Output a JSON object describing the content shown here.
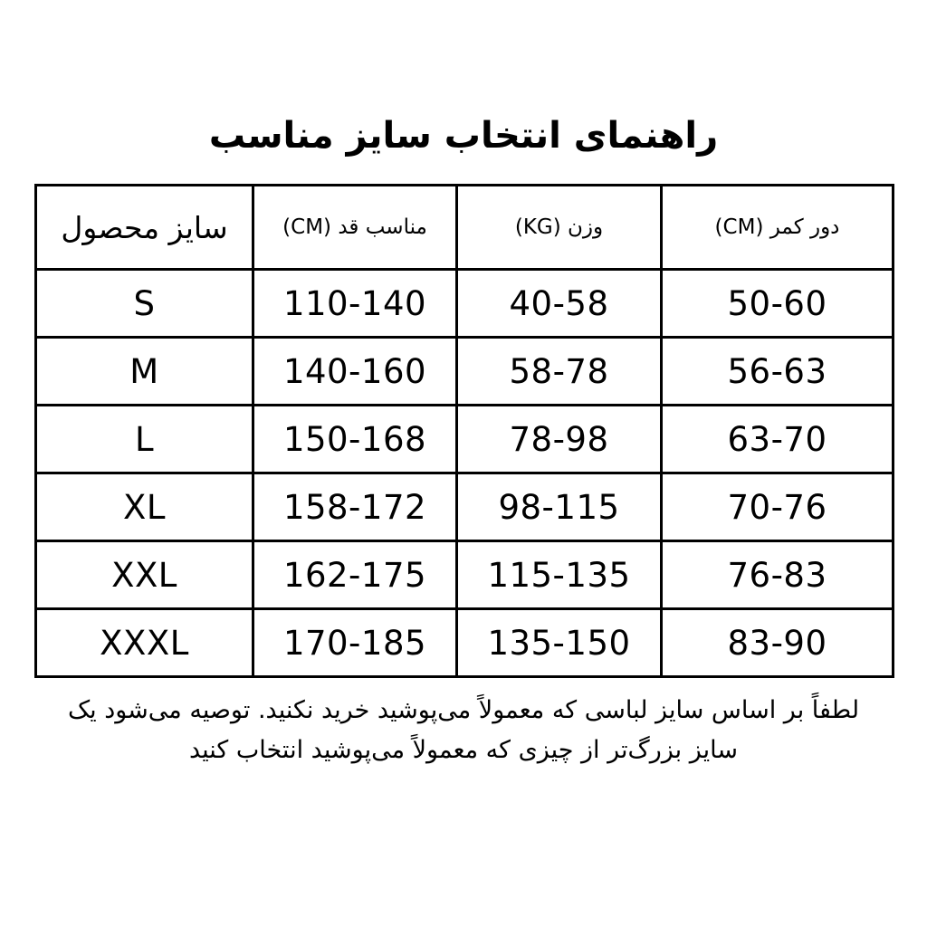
{
  "page": {
    "title": "راهنمای انتخاب سایز مناسب",
    "note_lines": [
      "لطفاً بر اساس سایز لباسی که معمولاً می‌پوشید خرید نکنید. توصیه می‌شود یک",
      "سایز بزرگ‌تر از چیزی که معمولاً می‌پوشید انتخاب کنید"
    ]
  },
  "table": {
    "columns": [
      {
        "key": "size",
        "label": "سایز محصول"
      },
      {
        "key": "height",
        "label": "مناسب قد (CM)"
      },
      {
        "key": "weight",
        "label": "وزن (KG)"
      },
      {
        "key": "waist",
        "label": "دور کمر (CM)"
      }
    ],
    "rows": [
      {
        "size": "S",
        "height": "110-140",
        "weight": "40-58",
        "waist": "50-60"
      },
      {
        "size": "M",
        "height": "140-160",
        "weight": "58-78",
        "waist": "56-63"
      },
      {
        "size": "L",
        "height": "150-168",
        "weight": "78-98",
        "waist": "63-70"
      },
      {
        "size": "XL",
        "height": "158-172",
        "weight": "98-115",
        "waist": "70-76"
      },
      {
        "size": "XXL",
        "height": "162-175",
        "weight": "115-135",
        "waist": "76-83"
      },
      {
        "size": "XXXL",
        "height": "170-185",
        "weight": "135-150",
        "waist": "83-90"
      }
    ]
  },
  "colors": {
    "text": "#000000",
    "border": "#000000",
    "background": "#ffffff"
  }
}
